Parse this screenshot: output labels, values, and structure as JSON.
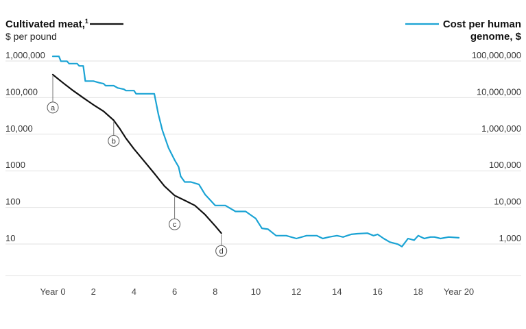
{
  "chart_data": {
    "type": "line",
    "left_axis": {
      "title": "Cultivated meat,",
      "title_sup": "1",
      "subtitle": "$ per pound",
      "scale": "log",
      "range": [
        3,
        1000000
      ],
      "ticks": [
        1000000,
        100000,
        10000,
        1000,
        100,
        10
      ],
      "tick_labels": [
        "1,000,000",
        "100,000",
        "10,000",
        "1000",
        "100",
        "10"
      ]
    },
    "right_axis": {
      "title_line1": "Cost per human",
      "title_line2": "genome, $",
      "scale": "log",
      "range": [
        300,
        100000000
      ],
      "ticks": [
        100000000,
        10000000,
        1000000,
        100000,
        10000,
        1000
      ],
      "tick_labels": [
        "100,000,000",
        "10,000,000",
        "1,000,000",
        "100,000",
        "10,000",
        "1,000"
      ]
    },
    "x_axis": {
      "range": [
        0,
        20
      ],
      "ticks": [
        0,
        2,
        4,
        6,
        8,
        10,
        12,
        14,
        16,
        18,
        20
      ],
      "tick_labels": [
        "Year 0",
        "2",
        "4",
        "6",
        "8",
        "10",
        "12",
        "14",
        "16",
        "18",
        "Year 20"
      ]
    },
    "grid": true,
    "colors": {
      "meat": "#111111",
      "genome": "#1aa3d4"
    },
    "series": [
      {
        "name": "Cultivated meat",
        "axis": "left",
        "x": [
          0,
          0.5,
          1,
          1.5,
          2,
          2.5,
          3,
          3.3,
          3.6,
          4,
          4.5,
          5,
          5.5,
          6,
          6.5,
          7,
          7.5,
          8,
          8.3
        ],
        "y": [
          300000,
          180000,
          110000,
          70000,
          45000,
          30000,
          17000,
          10000,
          5500,
          2800,
          1300,
          600,
          270,
          150,
          110,
          80,
          45,
          22,
          14
        ]
      },
      {
        "name": "Cost per human genome",
        "axis": "right",
        "x": [
          0,
          0.3,
          0.4,
          0.7,
          0.8,
          1.2,
          1.3,
          1.5,
          1.6,
          2,
          2.3,
          2.5,
          2.6,
          3,
          3.2,
          3.5,
          3.6,
          4,
          4.1,
          4.6,
          5,
          5.2,
          5.4,
          5.7,
          6,
          6.2,
          6.3,
          6.5,
          6.8,
          7.2,
          7.5,
          8,
          8.5,
          9,
          9.5,
          10,
          10.3,
          10.6,
          11,
          11.5,
          12,
          12.5,
          13,
          13.3,
          13.6,
          14,
          14.3,
          14.6,
          14.7,
          15,
          15.5,
          15.8,
          16,
          16.3,
          16.6,
          17,
          17.2,
          17.5,
          17.8,
          18,
          18.3,
          18.6,
          18.8,
          19.1,
          19.5,
          20
        ],
        "y": [
          95000000,
          95000000,
          70000000,
          70000000,
          60000000,
          60000000,
          52000000,
          52000000,
          20000000,
          20000000,
          18000000,
          17000000,
          15000000,
          15000000,
          13000000,
          12000000,
          11000000,
          11000000,
          9000000,
          9000000,
          9000000,
          2500000,
          900000,
          300000,
          140000,
          90000,
          50000,
          35000,
          35000,
          30000,
          16000,
          8000,
          8000,
          5500,
          5500,
          3500,
          1900,
          1800,
          1200,
          1200,
          1000,
          1200,
          1200,
          1000,
          1100,
          1200,
          1100,
          1250,
          1300,
          1350,
          1400,
          1200,
          1300,
          1000,
          800,
          700,
          600,
          1000,
          900,
          1200,
          1000,
          1100,
          1100,
          1000,
          1100,
          1050
        ]
      }
    ],
    "annotations": [
      {
        "label": "a",
        "x": 0,
        "y": 300000
      },
      {
        "label": "b",
        "x": 3,
        "y": 17000
      },
      {
        "label": "c",
        "x": 6,
        "y": 150
      },
      {
        "label": "d",
        "x": 8.3,
        "y": 14
      }
    ]
  }
}
